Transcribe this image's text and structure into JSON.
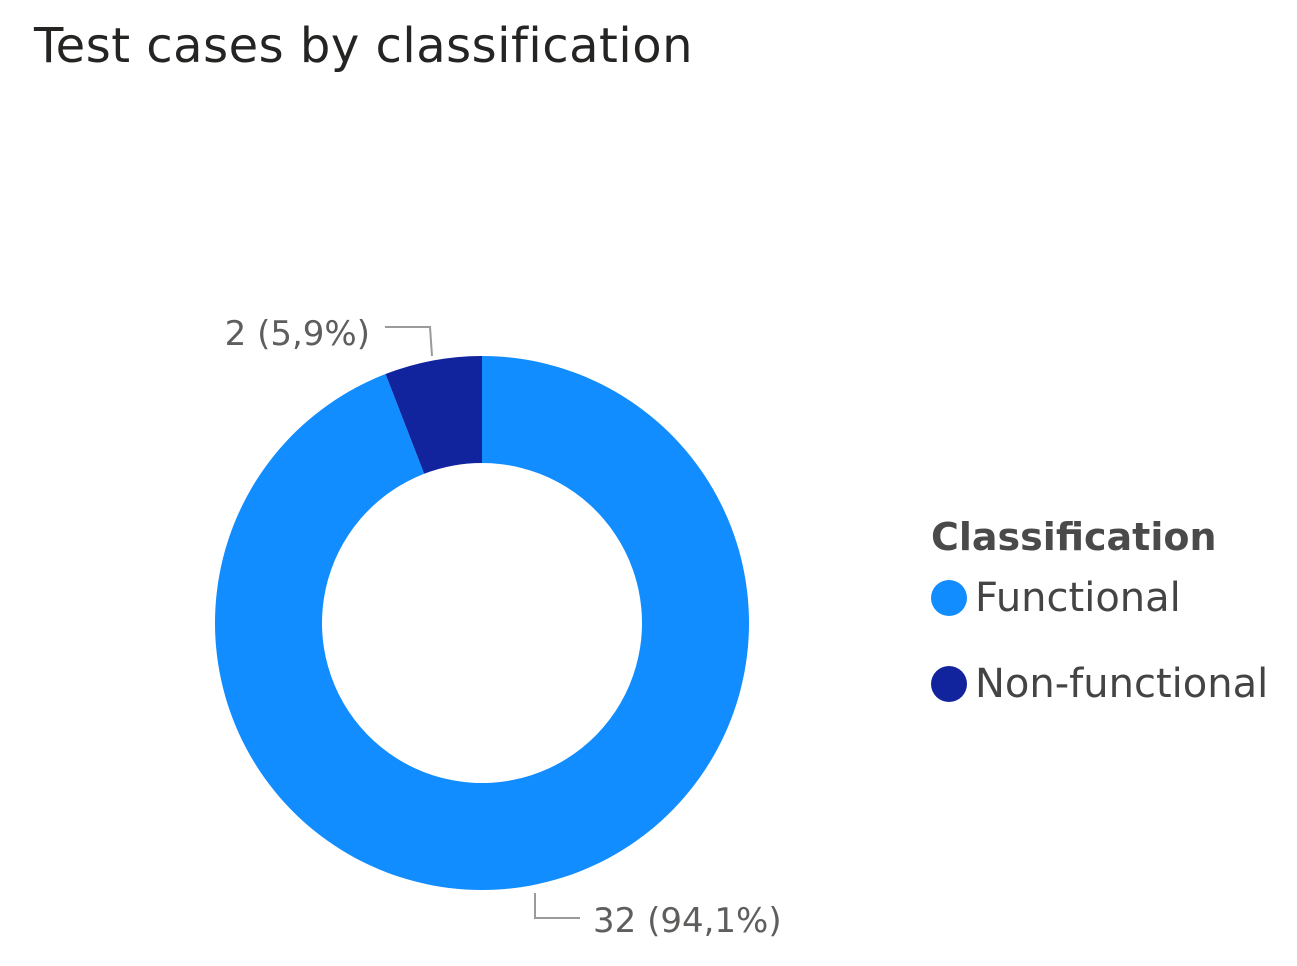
{
  "chart_data": {
    "type": "pie",
    "title": "Test cases by classification",
    "legend_title": "Classification",
    "legend_position": "right",
    "donut": true,
    "series": [
      {
        "name": "Functional",
        "value": 32,
        "label": "32 (94,1%)",
        "color": "#118dff"
      },
      {
        "name": "Non-functional",
        "value": 2,
        "label": "2 (5,9%)",
        "color": "#12239e"
      }
    ]
  }
}
